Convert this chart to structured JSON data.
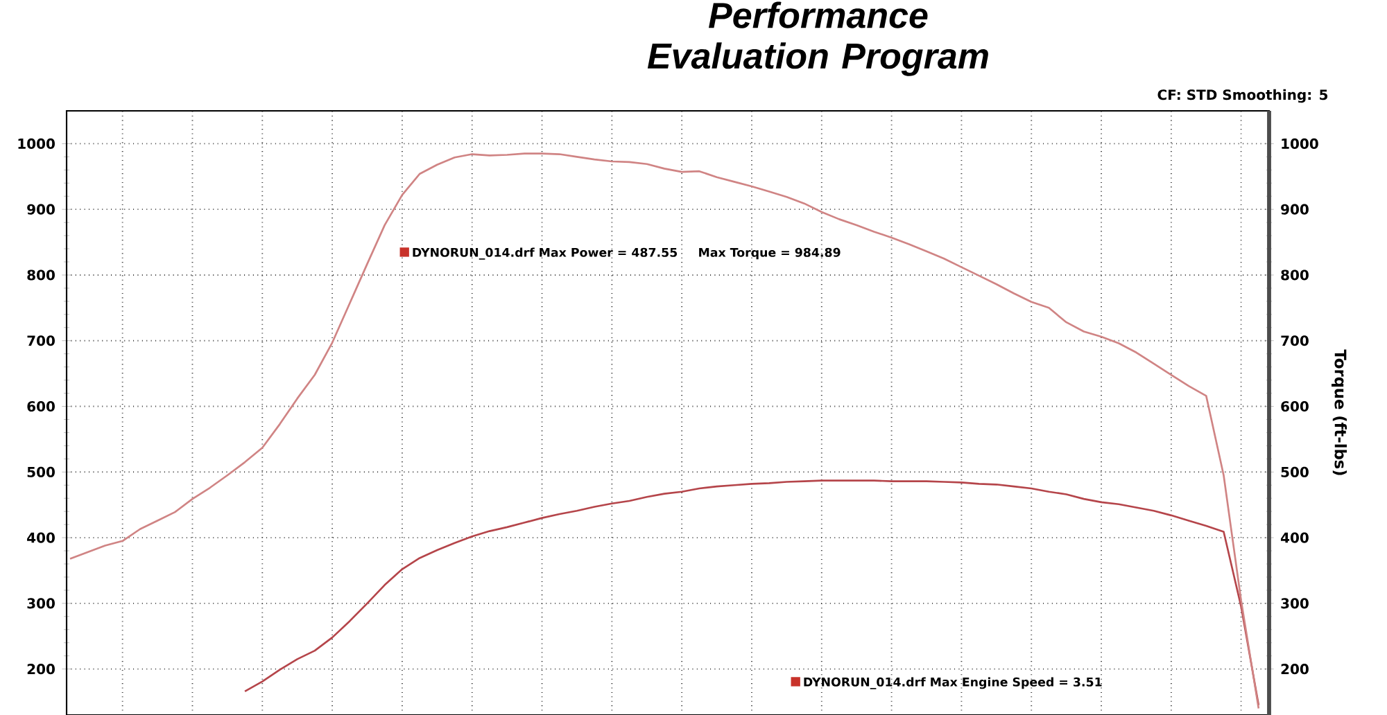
{
  "chart_data": {
    "type": "line",
    "title": "Performance Evaluation Program",
    "y2label": "Torque (ft-lbs)",
    "annotations": [
      "CF: STD  Smoothing: 5",
      "DYNORUN_014.drf Max Power = 487.55",
      "Max Torque = 984.89",
      "DYNORUN_014.drf Max Engine Speed = 3.51"
    ],
    "categories": [
      null,
      null,
      null,
      null,
      null,
      null,
      null,
      null,
      null,
      null,
      null,
      null,
      null,
      null,
      null,
      null,
      null,
      null,
      null,
      null,
      null,
      null,
      null,
      null,
      null,
      null,
      null,
      null,
      null,
      null,
      null,
      null,
      null,
      null,
      null,
      null,
      null,
      null,
      null,
      null,
      null,
      null,
      null,
      null,
      null,
      null,
      null,
      null,
      null,
      null,
      null,
      null,
      null,
      null,
      null,
      null,
      null,
      null,
      null,
      null,
      null,
      null,
      null,
      null,
      null,
      null,
      null,
      null,
      null
    ],
    "series": [
      {
        "color": "#b5454a",
        "values": [
          null,
          null,
          null,
          null,
          null,
          null,
          null,
          null,
          null,
          null,
          166,
          181,
          199,
          215,
          228,
          248,
          273,
          300,
          328,
          352,
          369,
          381,
          392,
          402,
          410,
          416,
          423,
          430,
          436,
          441,
          447,
          452,
          456,
          462,
          467,
          470,
          475,
          478,
          480,
          482,
          483,
          485,
          486,
          487,
          487,
          487,
          487,
          486,
          486,
          486,
          485,
          484,
          482,
          481,
          478,
          475,
          470,
          466,
          459,
          454,
          451,
          446,
          441,
          434,
          426,
          418,
          409,
          295,
          145
        ]
      },
      {
        "color": "#d08484",
        "axis": "y2",
        "values": [
          368,
          378,
          388,
          395,
          413,
          426,
          439,
          459,
          476,
          495,
          515,
          537,
          573,
          612,
          648,
          697,
          757,
          817,
          876,
          922,
          954,
          968,
          979,
          984,
          982,
          983,
          985,
          985,
          984,
          980,
          976,
          973,
          972,
          969,
          962,
          957,
          958,
          949,
          942,
          935,
          927,
          919,
          909,
          896,
          885,
          876,
          866,
          857,
          847,
          836,
          825,
          812,
          799,
          786,
          772,
          759,
          750,
          728,
          714,
          706,
          696,
          682,
          665,
          648,
          631,
          616,
          495,
          304,
          140
        ]
      }
    ],
    "ylim": [
      130,
      1050
    ],
    "yticks": [
      200,
      300,
      400,
      500,
      600,
      700,
      800,
      900,
      1000
    ],
    "y2lim": [
      130,
      1050
    ],
    "y2ticks": [
      200,
      300,
      400,
      500,
      600,
      700,
      800,
      900,
      1000
    ],
    "grid": true
  }
}
